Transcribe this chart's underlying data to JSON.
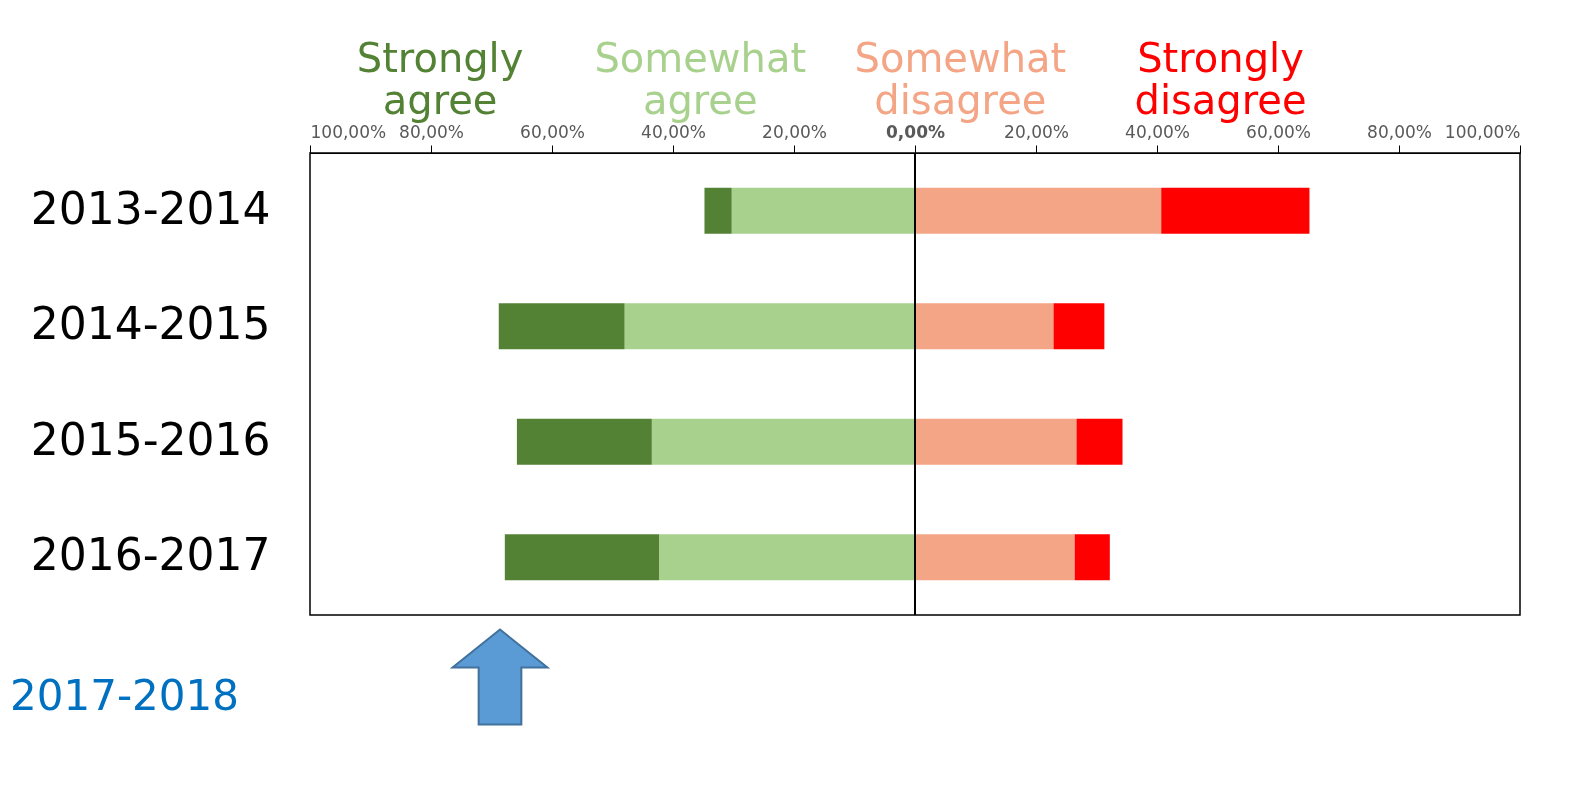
{
  "chart_data": {
    "type": "bar",
    "orientation": "horizontal",
    "stacked": true,
    "categories": [
      "2013-2014",
      "2014-2015",
      "2015-2016",
      "2016-2017"
    ],
    "series": [
      {
        "name": "Somewhat agree",
        "color": "#a9d18e",
        "values": [
          -30.3,
          -48.0,
          -43.5,
          -42.3
        ]
      },
      {
        "name": "Strongly agree",
        "color": "#548235",
        "values": [
          -4.5,
          -20.8,
          -22.3,
          -25.5
        ]
      },
      {
        "name": "Somewhat disagree",
        "color": "#f4a585",
        "values": [
          40.7,
          22.9,
          26.7,
          26.4
        ]
      },
      {
        "name": "Strongly disagree",
        "color": "#ff0000",
        "values": [
          24.5,
          8.4,
          7.6,
          5.8
        ]
      }
    ],
    "xlim": [
      -100,
      100
    ],
    "xticks": [
      {
        "value": -100,
        "label": "100,00%"
      },
      {
        "value": -80,
        "label": "80,00%"
      },
      {
        "value": -60,
        "label": "60,00%"
      },
      {
        "value": -40,
        "label": "40,00%"
      },
      {
        "value": -20,
        "label": "20,00%"
      },
      {
        "value": 0,
        "label": "0,00%"
      },
      {
        "value": 20,
        "label": "20,00%"
      },
      {
        "value": 40,
        "label": "40,00%"
      },
      {
        "value": 60,
        "label": "60,00%"
      },
      {
        "value": 80,
        "label": "80,00%"
      },
      {
        "value": 100,
        "label": "100,00%"
      }
    ],
    "ref_lines": [
      {
        "axis": "x",
        "value": 0,
        "color": "#000000"
      }
    ],
    "annotations": [
      "2017-2018"
    ],
    "legend": "top",
    "grid": false
  }
}
